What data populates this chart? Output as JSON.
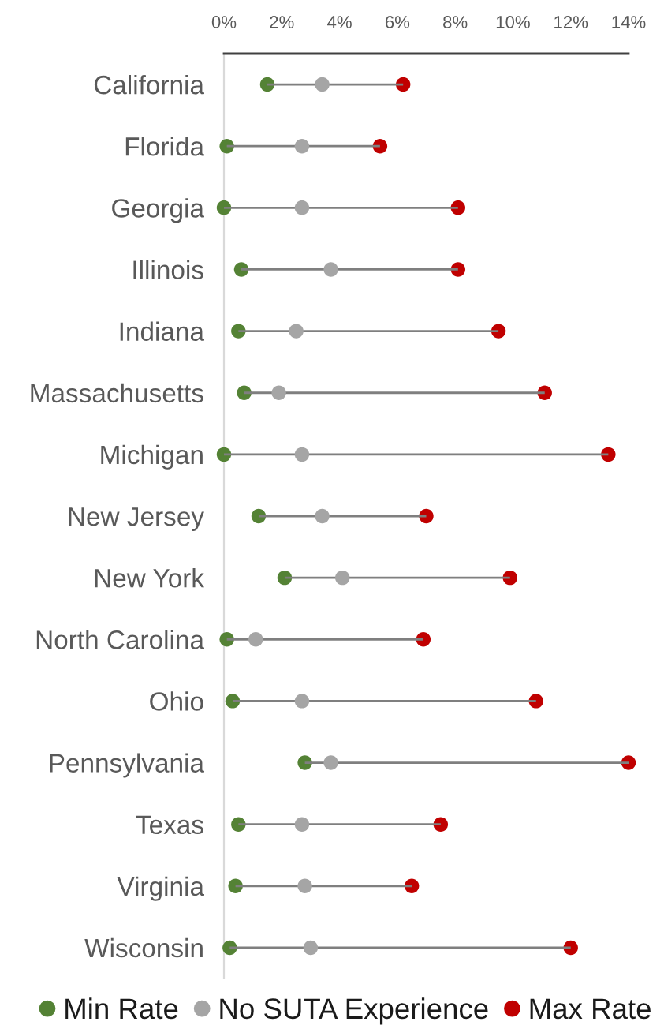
{
  "chart_data": {
    "type": "scatter",
    "orientation": "horizontal",
    "categories": [
      "California",
      "Florida",
      "Georgia",
      "Illinois",
      "Indiana",
      "Massachusetts",
      "Michigan",
      "New Jersey",
      "New York",
      "North Carolina",
      "Ohio",
      "Pennsylvania",
      "Texas",
      "Virginia",
      "Wisconsin"
    ],
    "series": [
      {
        "type": "bar",
        "color": "#7f7f7f",
        "base": [
          1.5,
          0.1,
          0,
          0.6,
          0.5,
          0.7,
          0,
          1.2,
          2.1,
          0.1,
          0.3,
          2.8,
          0.5,
          0.4,
          0.2
        ],
        "values": [
          4.7,
          5.3,
          8.1,
          7.5,
          9.0,
          10.4,
          13.3,
          5.8,
          7.8,
          6.8,
          10.5,
          11.2,
          7.0,
          6.1,
          11.8
        ]
      },
      {
        "name": "Min Rate",
        "color": "#548235",
        "values": [
          1.5,
          0.1,
          0,
          0.6,
          0.5,
          0.7,
          0,
          1.2,
          2.1,
          0.1,
          0.3,
          2.8,
          0.5,
          0.4,
          0.2
        ]
      },
      {
        "name": "No SUTA Experience",
        "color": "#a5a5a5",
        "values": [
          3.4,
          2.7,
          2.7,
          3.7,
          2.5,
          1.9,
          2.7,
          3.4,
          4.1,
          1.1,
          2.7,
          3.7,
          2.7,
          2.8,
          3.0
        ]
      },
      {
        "name": "Max Rate",
        "color": "#c00000",
        "values": [
          6.2,
          5.4,
          8.1,
          8.1,
          9.5,
          11.1,
          13.3,
          7.0,
          9.9,
          6.9,
          10.8,
          14.0,
          7.5,
          6.5,
          12.0
        ]
      }
    ],
    "xlim": [
      0,
      14
    ],
    "xticks": [
      {
        "value": 0,
        "label": "0%"
      },
      {
        "value": 2,
        "label": "2%"
      },
      {
        "value": 4,
        "label": "4%"
      },
      {
        "value": 6,
        "label": "6%"
      },
      {
        "value": 8,
        "label": "8%"
      },
      {
        "value": 10,
        "label": "10%"
      },
      {
        "value": 12,
        "label": "12%"
      },
      {
        "value": 14,
        "label": "14%"
      }
    ],
    "marker": "circle",
    "legend": "bottom"
  }
}
